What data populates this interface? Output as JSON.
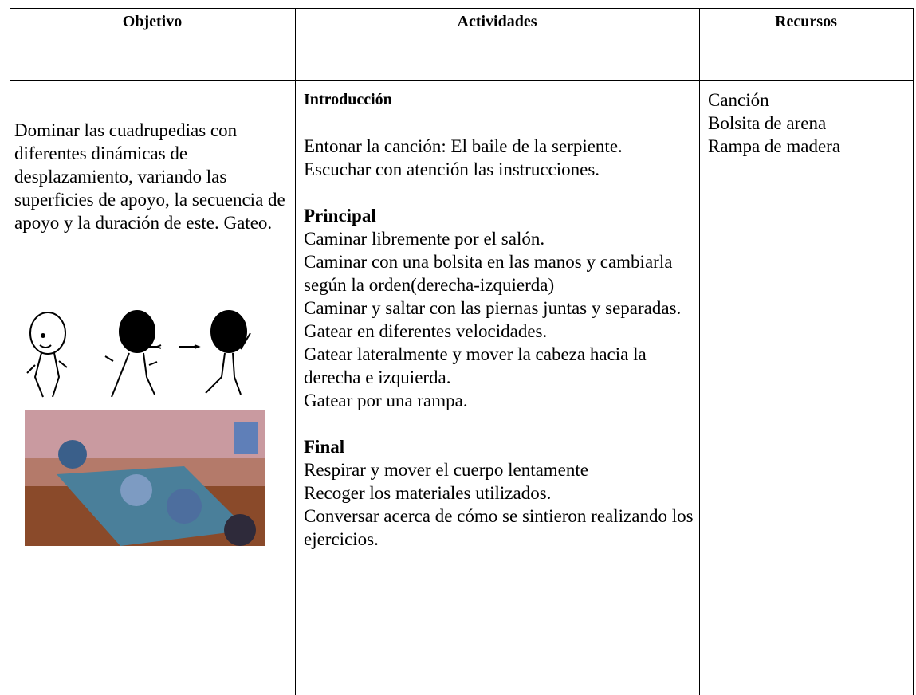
{
  "table": {
    "headers": [
      "Objetivo",
      "Actividades",
      "Recursos"
    ],
    "objective": "Dominar las cuadrupedias con diferentes dinámicas de desplazamiento, variando las superficies de apoyo, la secuencia de apoyo y la duración de este. Gateo.",
    "activities": [
      {
        "heading": "Introducción",
        "items": [
          "Entonar la canción: El baile de la serpiente.",
          "Escuchar con atención las instrucciones."
        ]
      },
      {
        "heading": "Principal",
        "items": [
          "Caminar libremente por el salón.",
          "Caminar con una bolsita en las manos y cambiarla según la orden(derecha-izquierda)",
          "Caminar y saltar con las piernas juntas y separadas.",
          "Gatear en diferentes velocidades.",
          "Gatear lateralmente y mover la cabeza hacia la derecha e izquierda.",
          "Gatear por una rampa."
        ]
      },
      {
        "heading": "Final",
        "items": [
          "Respirar y mover el cuerpo lentamente",
          "Recoger los materiales utilizados.",
          "Conversar acerca de cómo se sintieron realizando los ejercicios."
        ]
      }
    ],
    "resources": [
      "Canción",
      "Bolsita de arena",
      "Rampa de madera"
    ]
  }
}
